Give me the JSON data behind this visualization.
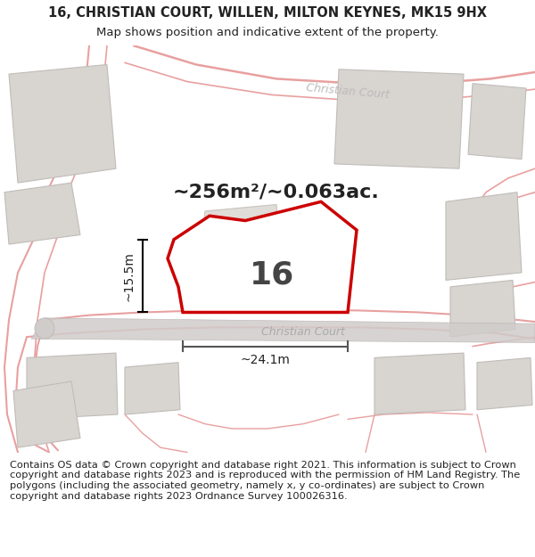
{
  "title_line1": "16, CHRISTIAN COURT, WILLEN, MILTON KEYNES, MK15 9HX",
  "title_line2": "Map shows position and indicative extent of the property.",
  "footer_text": "Contains OS data © Crown copyright and database right 2021. This information is subject to Crown copyright and database rights 2023 and is reproduced with the permission of HM Land Registry. The polygons (including the associated geometry, namely x, y co-ordinates) are subject to Crown copyright and database rights 2023 Ordnance Survey 100026316.",
  "area_label": "~256m²/~0.063ac.",
  "number_label": "16",
  "dim_width": "~24.1m",
  "dim_height": "~15.5m",
  "road_label_bottom": "Christian Court",
  "road_label_top": "Christian Court",
  "white": "#ffffff",
  "map_bg": "#ffffff",
  "building_fill": "#d8d4d0",
  "building_edge": "#c0bcb8",
  "pink": "#e8a0a0",
  "red": "#cc0000",
  "gray_road": "#c8c4c0",
  "dark_text": "#222222",
  "road_text": "#aaaaaa",
  "title_fontsize": 10.5,
  "subtitle_fontsize": 9.5,
  "footer_fontsize": 8.2,
  "area_fontsize": 16,
  "number_fontsize": 26,
  "dim_fontsize": 10
}
